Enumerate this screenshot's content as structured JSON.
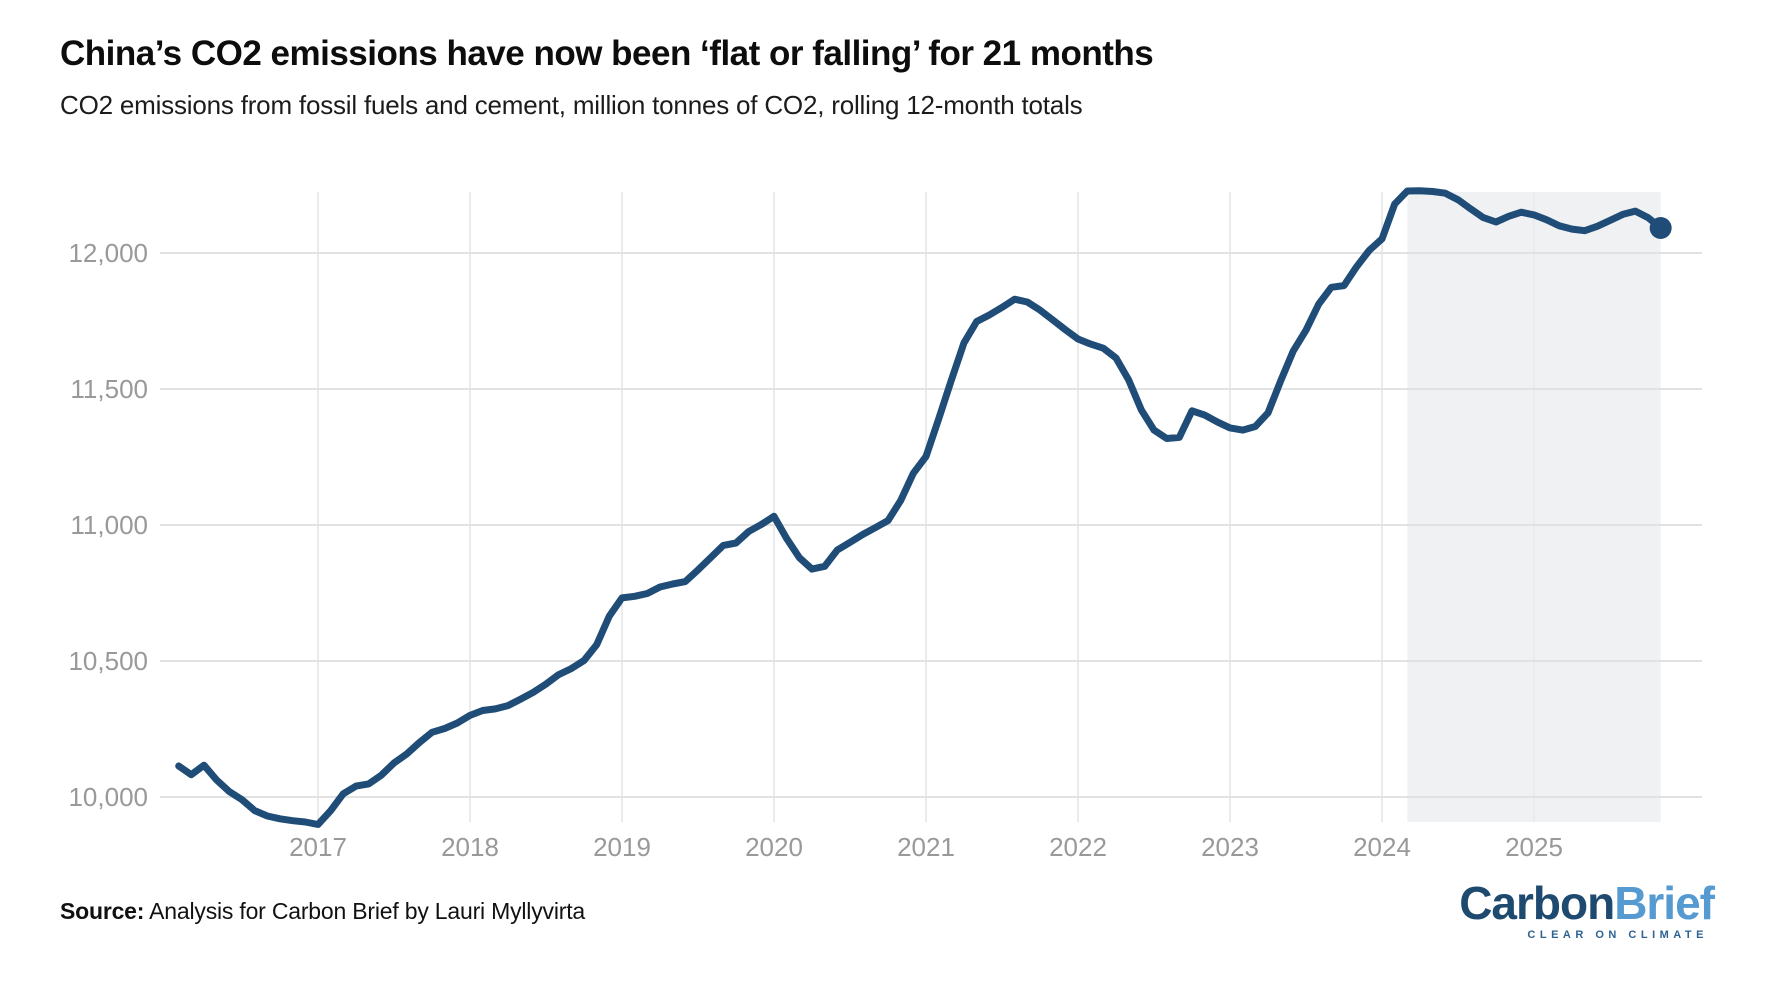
{
  "header": {
    "title": "China’s CO2 emissions have now been ‘flat or falling’ for 21 months",
    "subtitle": "CO2 emissions from fossil fuels and cement, million tonnes of CO2, rolling 12-month totals"
  },
  "footer": {
    "source_label": "Source:",
    "source_text": " Analysis for Carbon Brief by Lauri Myllyvirta",
    "logo": {
      "part1": "Carbon",
      "part2": "Brief",
      "tagline": "CLEAR ON CLIMATE"
    }
  },
  "chart_data": {
    "type": "line",
    "title": "China’s CO2 emissions have now been ‘flat or falling’ for 21 months",
    "subtitle": "CO2 emissions from fossil fuels and cement, million tonnes of CO2, rolling 12-month totals",
    "xlabel": "",
    "ylabel": "million tonnes of CO2",
    "frequency": "monthly",
    "ylim": [
      9900,
      12230
    ],
    "grid": true,
    "y_ticks": [
      12000,
      11500,
      11000,
      10500,
      10000
    ],
    "y_tick_labels": [
      "12,000",
      "11,500",
      "11,000",
      "10,500",
      "10,000"
    ],
    "x_ticks": [
      2017,
      2018,
      2019,
      2020,
      2021,
      2022,
      2023,
      2024,
      2025
    ],
    "highlight_region": {
      "from": "2024-03",
      "to": "2025-11"
    },
    "end_dot": {
      "x": "2025-11",
      "value": 12092
    },
    "colors": {
      "line": "#204d78",
      "dot": "#204d78",
      "highlight": "#f0f1f3",
      "grid_horizontal": "#e2e2e2",
      "grid_vertical": "#ebebeb",
      "axis_text": "#999999"
    },
    "series": [
      {
        "name": "CO2 emissions, rolling 12-month total (Mt CO2)",
        "start": "2016-02",
        "values": [
          10114,
          10082,
          10117,
          10062,
          10020,
          9990,
          9950,
          9930,
          9920,
          9913,
          9908,
          9899,
          9950,
          10012,
          10040,
          10048,
          10080,
          10125,
          10158,
          10200,
          10238,
          10252,
          10272,
          10300,
          10318,
          10324,
          10336,
          10360,
          10385,
          10415,
          10450,
          10472,
          10502,
          10560,
          10665,
          10732,
          10738,
          10748,
          10772,
          10783,
          10792,
          10835,
          10880,
          10925,
          10934,
          10976,
          11002,
          11032,
          10950,
          10880,
          10838,
          10848,
          10908,
          10936,
          10965,
          10990,
          11016,
          11090,
          11190,
          11252,
          11390,
          11532,
          11670,
          11748,
          11772,
          11800,
          11830,
          11820,
          11790,
          11754,
          11718,
          11684,
          11665,
          11650,
          11614,
          11533,
          11423,
          11349,
          11318,
          11322,
          11420,
          11404,
          11379,
          11357,
          11349,
          11362,
          11412,
          11530,
          11640,
          11716,
          11812,
          11874,
          11880,
          11950,
          12010,
          12052,
          12180,
          12228,
          12229,
          12226,
          12220,
          12196,
          12162,
          12130,
          12114,
          12135,
          12150,
          12140,
          12122,
          12100,
          12088,
          12082,
          12098,
          12120,
          12142,
          12154,
          12130,
          12092
        ]
      }
    ]
  }
}
